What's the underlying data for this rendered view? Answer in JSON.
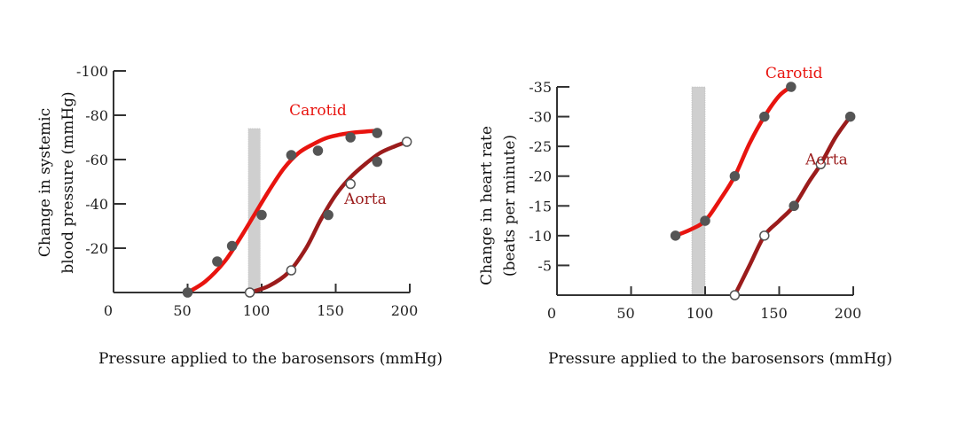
{
  "colors": {
    "carotid": "#e8140f",
    "aorta": "#9b1c1c",
    "axis": "#333333",
    "marker": "#555555",
    "band": "#cfcfcf"
  },
  "chart_data": [
    {
      "type": "line",
      "xlabel": "Pressure applied to the barosensors (mmHg)",
      "ylabel": [
        "Change in systemic",
        "blood pressure (mmHg)"
      ],
      "xlim": [
        0,
        200
      ],
      "ylim": [
        0,
        -100
      ],
      "xticks": [
        0,
        50,
        100,
        150,
        200
      ],
      "yticks": [
        -20,
        -40,
        -60,
        -80,
        -100
      ],
      "band_x": [
        91,
        99
      ],
      "band_ylim": [
        0,
        -74
      ],
      "series": [
        {
          "name": "Carotid",
          "x": [
            50,
            70,
            80,
            100,
            120,
            138,
            160,
            178
          ],
          "y": [
            0,
            -14,
            -21,
            -35,
            -62,
            -64,
            -70,
            -72
          ],
          "curve_x": [
            50,
            62,
            75,
            85,
            95,
            105,
            115,
            125,
            135,
            145,
            160,
            178
          ],
          "curve_y": [
            0,
            -5,
            -14,
            -24,
            -35,
            -46,
            -56,
            -63,
            -67,
            -70,
            -72,
            -73
          ],
          "markers": "filled",
          "label_at": [
            138,
            -80
          ]
        },
        {
          "name": "Aorta",
          "x": [
            92,
            120,
            145,
            160,
            178,
            198
          ],
          "y": [
            0,
            -10,
            -35,
            -49,
            -59,
            -68
          ],
          "curve_x": [
            92,
            105,
            118,
            130,
            140,
            150,
            160,
            170,
            180,
            190,
            198
          ],
          "curve_y": [
            0,
            -3,
            -9,
            -20,
            -33,
            -44,
            -52,
            -58,
            -63,
            -66,
            -68
          ],
          "markers": "mixed",
          "label_at": [
            170,
            -40
          ]
        }
      ]
    },
    {
      "type": "line",
      "xlabel": "Pressure applied to the barosensors (mmHg)",
      "ylabel": [
        "Change in heart rate",
        "(beats per minute)"
      ],
      "xlim": [
        0,
        200
      ],
      "ylim": [
        0,
        -35
      ],
      "xticks": [
        0,
        50,
        100,
        150,
        200
      ],
      "yticks": [
        -5,
        -10,
        -15,
        -20,
        -25,
        -30,
        -35
      ],
      "band_x": [
        91,
        100
      ],
      "band_ylim": [
        0,
        -35
      ],
      "series": [
        {
          "name": "Carotid",
          "x": [
            80,
            100,
            120,
            140,
            158
          ],
          "y": [
            -10,
            -12.5,
            -20,
            -30,
            -35
          ],
          "curve_x": [
            80,
            90,
            100,
            110,
            120,
            130,
            140,
            150,
            158
          ],
          "curve_y": [
            -10,
            -11,
            -12.5,
            -16,
            -20,
            -25.5,
            -30,
            -33.5,
            -35
          ],
          "markers": "filled",
          "label_at": [
            160,
            -36.5
          ]
        },
        {
          "name": "Aorta",
          "x": [
            120,
            140,
            160,
            178,
            198
          ],
          "y": [
            0,
            -10,
            -15,
            -22,
            -30
          ],
          "curve_x": [
            120,
            130,
            140,
            150,
            160,
            170,
            178,
            188,
            198
          ],
          "curve_y": [
            0,
            -5,
            -10,
            -12.5,
            -15,
            -19,
            -22,
            -26.5,
            -30
          ],
          "markers": "mixed",
          "label_at": [
            182,
            -22
          ]
        }
      ]
    }
  ]
}
